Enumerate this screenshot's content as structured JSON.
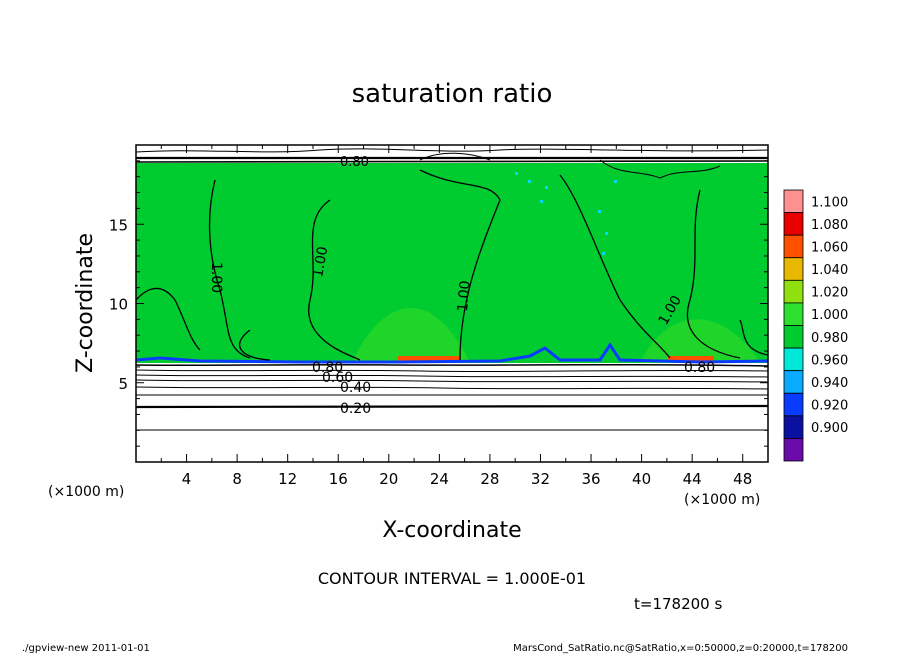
{
  "chart_data": {
    "type": "heatmap",
    "title": "saturation ratio",
    "xlabel": "X-coordinate",
    "ylabel": "Z-coordinate",
    "x_unit_label": "(×1000 m)",
    "y_unit_label": "(×1000 m)",
    "xlim": [
      0,
      50
    ],
    "ylim": [
      0,
      20
    ],
    "x_ticks": [
      "4",
      "8",
      "12",
      "16",
      "20",
      "24",
      "28",
      "32",
      "36",
      "40",
      "44",
      "48"
    ],
    "y_ticks": [
      "5",
      "10",
      "15"
    ],
    "colorbar": {
      "levels": [
        "0.900",
        "0.920",
        "0.940",
        "0.960",
        "0.980",
        "1.000",
        "1.020",
        "1.040",
        "1.060",
        "1.080",
        "1.100"
      ],
      "colors": [
        "#6a0aa8",
        "#0a10a0",
        "#0a3cff",
        "#0aaaff",
        "#00e8d8",
        "#00cc30",
        "#2ee02e",
        "#90e010",
        "#e8b800",
        "#ff5000",
        "#e80000",
        "#ff9090"
      ]
    },
    "contour_labels": [
      "0.20",
      "0.40",
      "0.60",
      "0.80",
      "1.00",
      "0.80",
      "1.00",
      "1.00",
      "1.00",
      "0.80"
    ],
    "contour_interval_text": "CONTOUR INTERVAL = 1.000E-01",
    "time_text": "t=178200  s",
    "regions": [
      {
        "z_from": 0,
        "z_to": 6.3,
        "ratio_range": [
          0.0,
          0.8
        ],
        "fill": "none"
      },
      {
        "z_from": 6.3,
        "z_to": 19.0,
        "ratio_range": [
          1.0,
          1.02
        ],
        "fill": "green"
      },
      {
        "z_from": 19.0,
        "z_to": 20.0,
        "ratio_range": [
          0.0,
          0.8
        ],
        "fill": "none"
      }
    ]
  },
  "footer": {
    "left": "./gpview-new   2011-01-01",
    "right": "MarsCond_SatRatio.nc@SatRatio,x=0:50000,z=0:20000,t=178200"
  }
}
